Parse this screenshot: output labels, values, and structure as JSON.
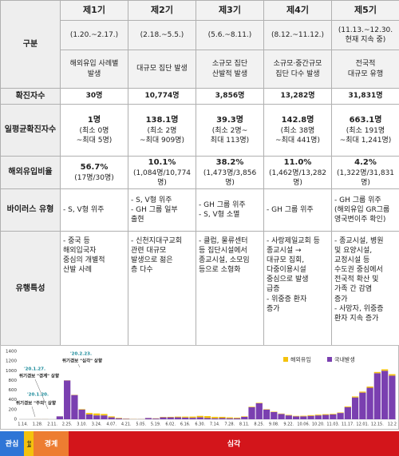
{
  "table": {
    "header": {
      "label": "구분",
      "periods": [
        "제1기",
        "제2기",
        "제3기",
        "제4기",
        "제5기"
      ],
      "dates": [
        "(1.20.~2.17.)",
        "(2.18.~5.5.)",
        "(5.6.~8.11.)",
        "(8.12.~11.12.)",
        "(11.13.~12.30.\n현재 지속 중)"
      ],
      "descriptions": [
        "해외유입 사례별\n발생",
        "대규모 집단 발생",
        "소규모 집단\n산발적 발생",
        "소규모·중간규모\n집단 다수 발생",
        "전국적\n대규모 유행"
      ]
    },
    "rows": [
      {
        "label": "확진자수",
        "cells": [
          "30명",
          "10,774명",
          "3,856명",
          "13,282명",
          "31,831명"
        ]
      },
      {
        "label": "일평균확진자수",
        "cells": [
          {
            "value": "1명",
            "note": "(최소 0명\n~최대 5명)"
          },
          {
            "value": "138.1명",
            "note": "(최소 2명\n~최대 909명)"
          },
          {
            "value": "39.3명",
            "note": "(최소 2명~\n최대 113명)"
          },
          {
            "value": "142.8명",
            "note": "(최소 38명\n~최대 441명)"
          },
          {
            "value": "663.1명",
            "note": "(최소 191명\n~최대 1,241명)"
          }
        ]
      },
      {
        "label": "해외유입비율",
        "cells": [
          {
            "value": "56.7%",
            "note": "(17명/30명)"
          },
          {
            "value": "10.1%",
            "note": "(1,084명/10,774명)"
          },
          {
            "value": "38.2%",
            "note": "(1,473명/3,856명)"
          },
          {
            "value": "11.0%",
            "note": "(1,462명/13,282명)"
          },
          {
            "value": "4.2%",
            "note": "(1,322명/31,831명)"
          }
        ]
      },
      {
        "label": "바이러스 유형",
        "cells": [
          "- S, V형 위주",
          "- S, V형 위주\n- GH 그룹 일부\n  출현",
          "- GH 그룹 위주\n- S, V형 소멸",
          "- GH 그룹 위주",
          "- GH 그룹 위주\n(해외유입 GR그룹\n영국변이주 확인)"
        ]
      },
      {
        "label": "유행특성",
        "cells": [
          "- 중국 등\n해외입국자\n중심의 개별적\n산발 사례",
          "- 신천지대구교회\n관련 대규모\n발생으로 젊은\n층 다수",
          "- 클럽, 물류센터\n등 집단시설에서\n종교시설, 소모임\n등으로 소형화",
          "- 사랑제일교회 등\n종교시설 →\n대규모 집회,\n다중이용시설\n중심으로 발생\n급증\n- 위중증 환자\n증가",
          "- 종교시설, 병원\n및 요양시설,\n교정시설 등\n수도권 중심에서\n전국적 확산 및\n가족 간 감염\n증가\n- 사망자, 위중증\n환자 지속 증가"
        ]
      }
    ]
  },
  "chart_data": {
    "type": "bar",
    "stacked": true,
    "categories": [
      "1.14.",
      null,
      "1.28.",
      null,
      "2.11.",
      null,
      "2.25.",
      null,
      "3.10.",
      null,
      "3.24.",
      null,
      "4.07.",
      null,
      "4.21.",
      null,
      "5.05.",
      null,
      "5.19.",
      null,
      "6.02.",
      null,
      "6.16.",
      null,
      "6.30.",
      null,
      "7.14.",
      null,
      "7.28.",
      null,
      "8.11.",
      null,
      "8.25.",
      null,
      "9.08.",
      null,
      "9.22.",
      null,
      "10.06.",
      null,
      "10.20.",
      null,
      "11.03.",
      null,
      "11.17.",
      null,
      "12.01.",
      null,
      "12.15.",
      null,
      "12.2"
    ],
    "series": [
      {
        "name": "해외유입",
        "color": "#f4c20d",
        "values": [
          0,
          0,
          1,
          1,
          0,
          1,
          3,
          5,
          10,
          30,
          40,
          30,
          20,
          10,
          5,
          3,
          2,
          2,
          5,
          8,
          10,
          15,
          20,
          25,
          30,
          40,
          30,
          25,
          20,
          15,
          10,
          10,
          10,
          8,
          8,
          8,
          10,
          10,
          12,
          15,
          15,
          15,
          12,
          10,
          15,
          20,
          20,
          25,
          25,
          30,
          30
        ]
      },
      {
        "name": "국내발생",
        "color": "#7a3fb0",
        "values": [
          0,
          0,
          1,
          1,
          0,
          60,
          800,
          500,
          200,
          100,
          80,
          80,
          40,
          20,
          8,
          3,
          3,
          25,
          15,
          40,
          40,
          40,
          35,
          30,
          40,
          25,
          20,
          25,
          20,
          20,
          50,
          250,
          330,
          200,
          150,
          110,
          80,
          60,
          60,
          70,
          80,
          90,
          100,
          130,
          250,
          450,
          550,
          650,
          950,
          1000,
          900
        ]
      }
    ],
    "ylim": [
      0,
      1400
    ],
    "yticks": [
      0,
      200,
      400,
      600,
      800,
      1000,
      1200,
      1400
    ],
    "annotations": [
      {
        "date": "'20.2.23.",
        "text": "위기경보 \"심각\" 상향"
      },
      {
        "date": "'20.1.27.",
        "text": "위기경보 \"경계\" 상향"
      },
      {
        "date": "'20.1.20.",
        "text": "위기경보 \"주의\" 상향"
      }
    ],
    "phases": [
      {
        "name": "관심",
        "color": "#2e75d6"
      },
      {
        "name": "주의",
        "color": "#f4c20d"
      },
      {
        "name": "경계",
        "color": "#ed7d31"
      },
      {
        "name": "심각",
        "color": "#d3151b"
      }
    ]
  }
}
